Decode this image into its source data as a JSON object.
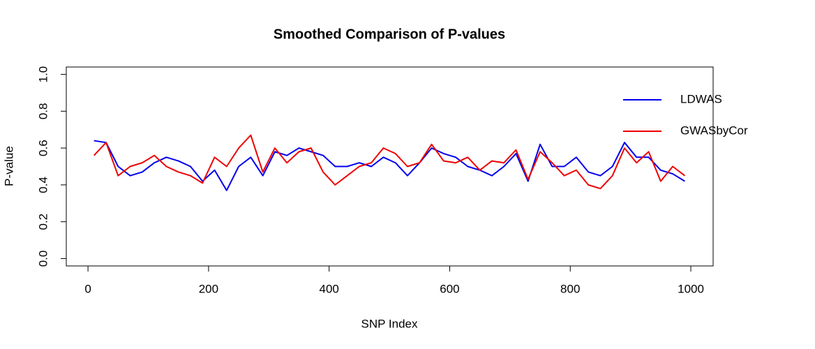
{
  "chart_data": {
    "type": "line",
    "title": "Smoothed Comparison of P-values",
    "x_label": "SNP Index",
    "y_label": "P-value",
    "x": [
      10,
      30,
      50,
      70,
      90,
      110,
      130,
      150,
      170,
      190,
      210,
      230,
      250,
      270,
      290,
      310,
      330,
      350,
      370,
      390,
      410,
      430,
      450,
      470,
      490,
      510,
      530,
      550,
      570,
      590,
      610,
      630,
      650,
      670,
      690,
      710,
      730,
      750,
      770,
      790,
      810,
      830,
      850,
      870,
      890,
      910,
      930,
      950,
      970,
      990
    ],
    "series": [
      {
        "name": "LDWAS",
        "color": "#0000ee",
        "values": [
          0.64,
          0.63,
          0.5,
          0.45,
          0.47,
          0.52,
          0.55,
          0.53,
          0.5,
          0.42,
          0.48,
          0.37,
          0.5,
          0.55,
          0.45,
          0.58,
          0.56,
          0.6,
          0.58,
          0.56,
          0.5,
          0.5,
          0.52,
          0.5,
          0.55,
          0.52,
          0.45,
          0.52,
          0.6,
          0.57,
          0.55,
          0.5,
          0.48,
          0.45,
          0.5,
          0.57,
          0.42,
          0.62,
          0.5,
          0.5,
          0.55,
          0.47,
          0.45,
          0.5,
          0.63,
          0.55,
          0.55,
          0.48,
          0.46,
          0.42
        ]
      },
      {
        "name": "GWASbyCor",
        "color": "#ee0000",
        "values": [
          0.56,
          0.63,
          0.45,
          0.5,
          0.52,
          0.56,
          0.5,
          0.47,
          0.45,
          0.41,
          0.55,
          0.5,
          0.6,
          0.67,
          0.47,
          0.6,
          0.52,
          0.58,
          0.6,
          0.47,
          0.4,
          0.45,
          0.5,
          0.52,
          0.6,
          0.57,
          0.5,
          0.52,
          0.62,
          0.53,
          0.52,
          0.55,
          0.48,
          0.53,
          0.52,
          0.59,
          0.43,
          0.58,
          0.52,
          0.45,
          0.48,
          0.4,
          0.38,
          0.45,
          0.6,
          0.52,
          0.58,
          0.42,
          0.5,
          0.45
        ]
      }
    ],
    "xlim": [
      -36,
      1037
    ],
    "ylim": [
      -0.04,
      1.04
    ],
    "xticks": [
      0,
      200,
      400,
      600,
      800,
      1000
    ],
    "yticks": [
      {
        "value": 0,
        "label": "0.0"
      },
      0.2,
      0.4,
      0.6,
      0.8,
      {
        "value": 1,
        "label": "1.0"
      }
    ],
    "legend": "topright"
  }
}
